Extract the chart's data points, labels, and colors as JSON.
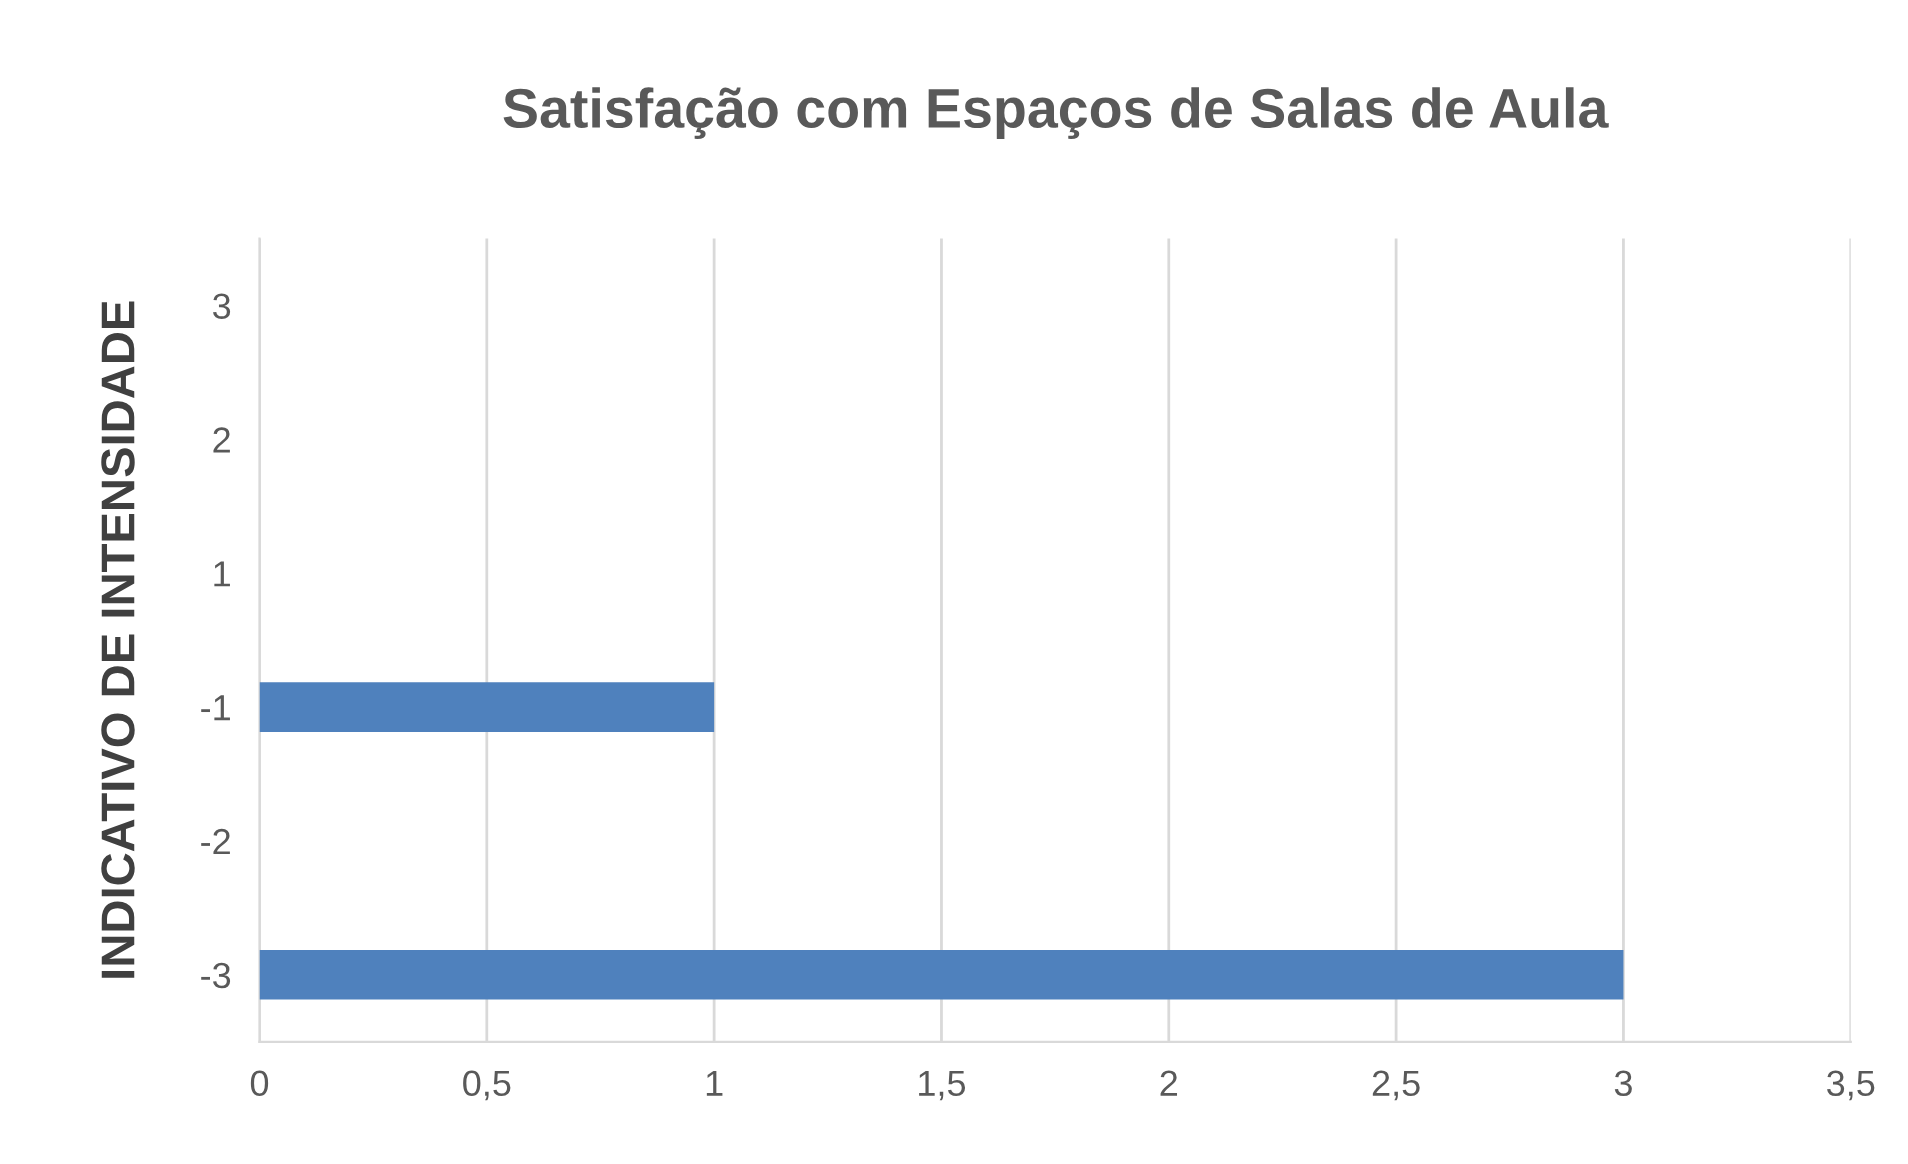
{
  "chart_data": {
    "type": "bar",
    "orientation": "horizontal",
    "title": "Satisfação com Espaços de Salas de Aula",
    "ylabel": "INDICATIVO DE INTENSIDADE",
    "categories": [
      "3",
      "2",
      "1",
      "-1",
      "-2",
      "-3"
    ],
    "values": [
      0,
      0,
      0,
      1,
      0,
      3
    ],
    "color": "#4f81bd",
    "xlim": [
      0,
      3.5
    ],
    "xticks": [
      0,
      {
        "value": 0.5,
        "label": "0,5"
      },
      1,
      {
        "value": 1.5,
        "label": "1,5"
      },
      2,
      {
        "value": 2.5,
        "label": "2,5"
      },
      3,
      {
        "value": 3.5,
        "label": "3,5"
      }
    ],
    "grid": "x"
  }
}
